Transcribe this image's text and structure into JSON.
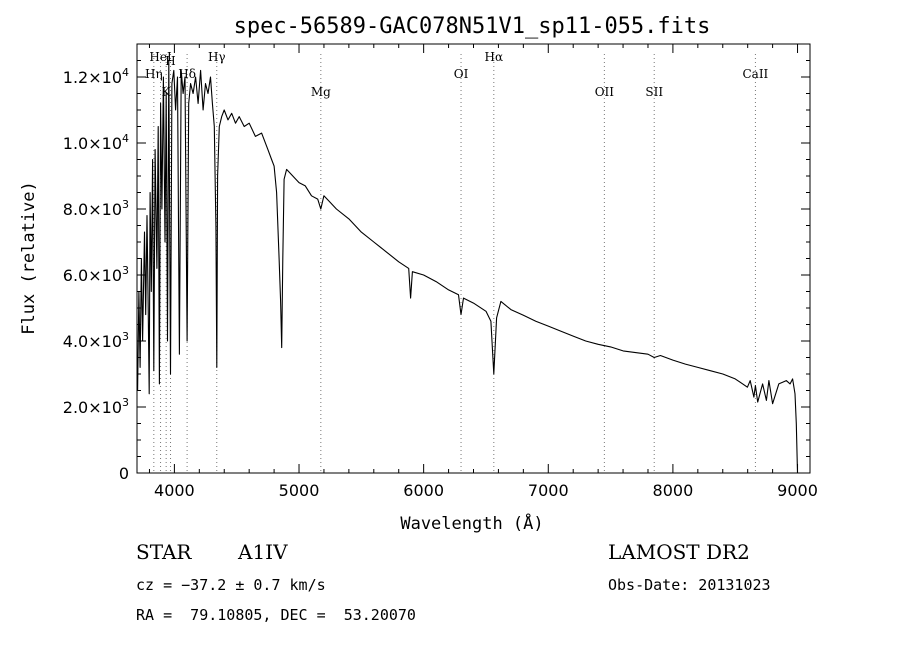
{
  "chart_data": {
    "type": "line",
    "title": "spec-56589-GAC078N51V1_sp11-055.fits",
    "xlabel": "Wavelength (Å)",
    "ylabel": "Flux (relative)",
    "xlim": [
      3700,
      9100
    ],
    "ylim": [
      0,
      13000
    ],
    "x_ticks": [
      4000,
      5000,
      6000,
      7000,
      8000,
      9000
    ],
    "y_ticks": [
      {
        "value": 0,
        "label": "0"
      },
      {
        "value": 2000,
        "label": "2.0×10",
        "exp": "3"
      },
      {
        "value": 4000,
        "label": "4.0×10",
        "exp": "3"
      },
      {
        "value": 6000,
        "label": "6.0×10",
        "exp": "3"
      },
      {
        "value": 8000,
        "label": "8.0×10",
        "exp": "3"
      },
      {
        "value": 10000,
        "label": "1.0×10",
        "exp": "4"
      },
      {
        "value": 12000,
        "label": "1.2×10",
        "exp": "4"
      }
    ],
    "line_markers": [
      {
        "label": "Hη",
        "wavelength": 3835,
        "row": 2
      },
      {
        "label": "HeI",
        "wavelength": 3889,
        "row": 1
      },
      {
        "label": "K",
        "wavelength": 3934,
        "row": 3
      },
      {
        "label": "H",
        "wavelength": 3969,
        "row": 0
      },
      {
        "label": "Hδ",
        "wavelength": 4102,
        "row": 2
      },
      {
        "label": "Hγ",
        "wavelength": 4340,
        "row": 1
      },
      {
        "label": "Mg",
        "wavelength": 5175,
        "row": 3
      },
      {
        "label": "OI",
        "wavelength": 6300,
        "row": 2
      },
      {
        "label": "Hα",
        "wavelength": 6563,
        "row": 1
      },
      {
        "label": "OII",
        "wavelength": 7450,
        "row": 3
      },
      {
        "label": "SII",
        "wavelength": 7850,
        "row": 3
      },
      {
        "label": "CaII",
        "wavelength": 8662,
        "row": 2
      }
    ],
    "series": [
      {
        "values_x": [
          3705,
          3715,
          3725,
          3735,
          3745,
          3760,
          3770,
          3780,
          3790,
          3798,
          3805,
          3815,
          3825,
          3835,
          3845,
          3860,
          3870,
          3880,
          3889,
          3900,
          3912,
          3925,
          3934,
          3945,
          3955,
          3969,
          3980,
          3995,
          4010,
          4025,
          4040,
          4055,
          4070,
          4085,
          4102,
          4115,
          4130,
          4150,
          4170,
          4190,
          4210,
          4230,
          4250,
          4270,
          4290,
          4305,
          4320,
          4333,
          4340,
          4347,
          4360,
          4380,
          4400,
          4430,
          4460,
          4490,
          4520,
          4560,
          4600,
          4650,
          4700,
          4750,
          4780,
          4800,
          4820,
          4840,
          4852,
          4861,
          4870,
          4880,
          4900,
          4950,
          5000,
          5050,
          5100,
          5150,
          5175,
          5200,
          5250,
          5300,
          5400,
          5500,
          5600,
          5700,
          5800,
          5880,
          5895,
          5910,
          6000,
          6100,
          6200,
          6280,
          6300,
          6320,
          6400,
          6500,
          6540,
          6563,
          6585,
          6620,
          6700,
          6800,
          6900,
          7000,
          7100,
          7200,
          7300,
          7400,
          7500,
          7600,
          7700,
          7800,
          7850,
          7900,
          8000,
          8100,
          8200,
          8300,
          8400,
          8500,
          8560,
          8598,
          8620,
          8650,
          8662,
          8680,
          8720,
          8750,
          8770,
          8800,
          8850,
          8880,
          8910,
          8940,
          8960,
          8980,
          8990,
          9000
        ],
        "values_y": [
          2500,
          5500,
          3200,
          6500,
          4000,
          7300,
          4800,
          7800,
          5000,
          2400,
          8500,
          5500,
          9500,
          3100,
          9800,
          6200,
          10500,
          2700,
          11200,
          8000,
          12000,
          7000,
          11500,
          4000,
          12500,
          3000,
          11800,
          12200,
          11000,
          12000,
          3600,
          12200,
          11500,
          12000,
          4000,
          11200,
          11800,
          11500,
          12000,
          11200,
          12200,
          11000,
          11800,
          11500,
          12000,
          11200,
          10500,
          7500,
          3200,
          9000,
          10500,
          10800,
          11000,
          10700,
          10900,
          10600,
          10800,
          10500,
          10600,
          10200,
          10300,
          9800,
          9500,
          9300,
          8500,
          6500,
          5200,
          3800,
          6500,
          8900,
          9200,
          9000,
          8800,
          8700,
          8400,
          8300,
          8000,
          8400,
          8200,
          8000,
          7700,
          7300,
          7000,
          6700,
          6400,
          6200,
          5300,
          6100,
          6000,
          5800,
          5550,
          5400,
          4800,
          5300,
          5150,
          4900,
          4600,
          3000,
          4700,
          5200,
          4950,
          4780,
          4600,
          4450,
          4300,
          4150,
          4000,
          3900,
          3820,
          3700,
          3650,
          3600,
          3500,
          3560,
          3420,
          3300,
          3200,
          3100,
          3000,
          2850,
          2700,
          2600,
          2800,
          2300,
          2650,
          2150,
          2700,
          2200,
          2800,
          2100,
          2700,
          2750,
          2800,
          2700,
          2850,
          2400,
          1500,
          0
        ]
      }
    ],
    "grid": false,
    "legend": "none"
  },
  "info": {
    "star_label": "STAR",
    "subclass": "A1IV",
    "survey": "LAMOST DR2",
    "cz": "cz = −37.2 ± 0.7 km/s",
    "obs_date": "Obs-Date: 20131023",
    "coords": "RA =  79.10805, DEC =  53.20070"
  }
}
